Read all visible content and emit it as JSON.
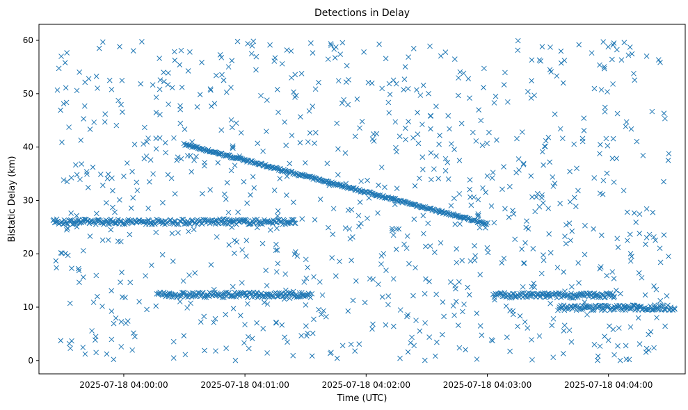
{
  "chart_data": {
    "type": "scatter",
    "title": "Detections in Delay",
    "xlabel": "Time (UTC)",
    "ylabel": "Bistatic Delay (km)",
    "marker": "x",
    "color": "#1f77b4",
    "grid": false,
    "legend": "none",
    "x_axis": {
      "kind": "datetime",
      "range": [
        "2025-07-18 03:59:18",
        "2025-07-18 04:04:38"
      ],
      "ticks": [
        "2025-07-18 04:00:00",
        "2025-07-18 04:01:00",
        "2025-07-18 04:02:00",
        "2025-07-18 04:03:00",
        "2025-07-18 04:04:00"
      ]
    },
    "y_axis": {
      "range": [
        -2.5,
        63
      ],
      "ticks": [
        0,
        10,
        20,
        30,
        40,
        50,
        60
      ]
    },
    "tracks": [
      {
        "description": "descending target track",
        "x_start": "2025-07-18 04:00:30",
        "x_end": "2025-07-18 04:03:00",
        "y_start": 40.5,
        "y_end": 25.6
      },
      {
        "description": "persistent band ~26 km",
        "x_start": "2025-07-18 03:59:25",
        "x_end": "2025-07-18 04:01:25",
        "y_value": 26.0
      },
      {
        "description": "persistent band ~12 km (early)",
        "x_start": "2025-07-18 04:00:17",
        "x_end": "2025-07-18 04:01:33",
        "y_value": 12.3
      },
      {
        "description": "persistent band ~12 km (late)",
        "x_start": "2025-07-18 04:03:03",
        "x_end": "2025-07-18 04:04:03",
        "y_value": 12.2
      },
      {
        "description": "band ~10 km",
        "x_start": "2025-07-18 04:03:35",
        "x_end": "2025-07-18 04:04:33",
        "y_value": 9.9
      }
    ],
    "noise": {
      "description": "randomly scattered false detections across full delay range",
      "approx_count": 900,
      "y_range": [
        0,
        60
      ]
    }
  }
}
